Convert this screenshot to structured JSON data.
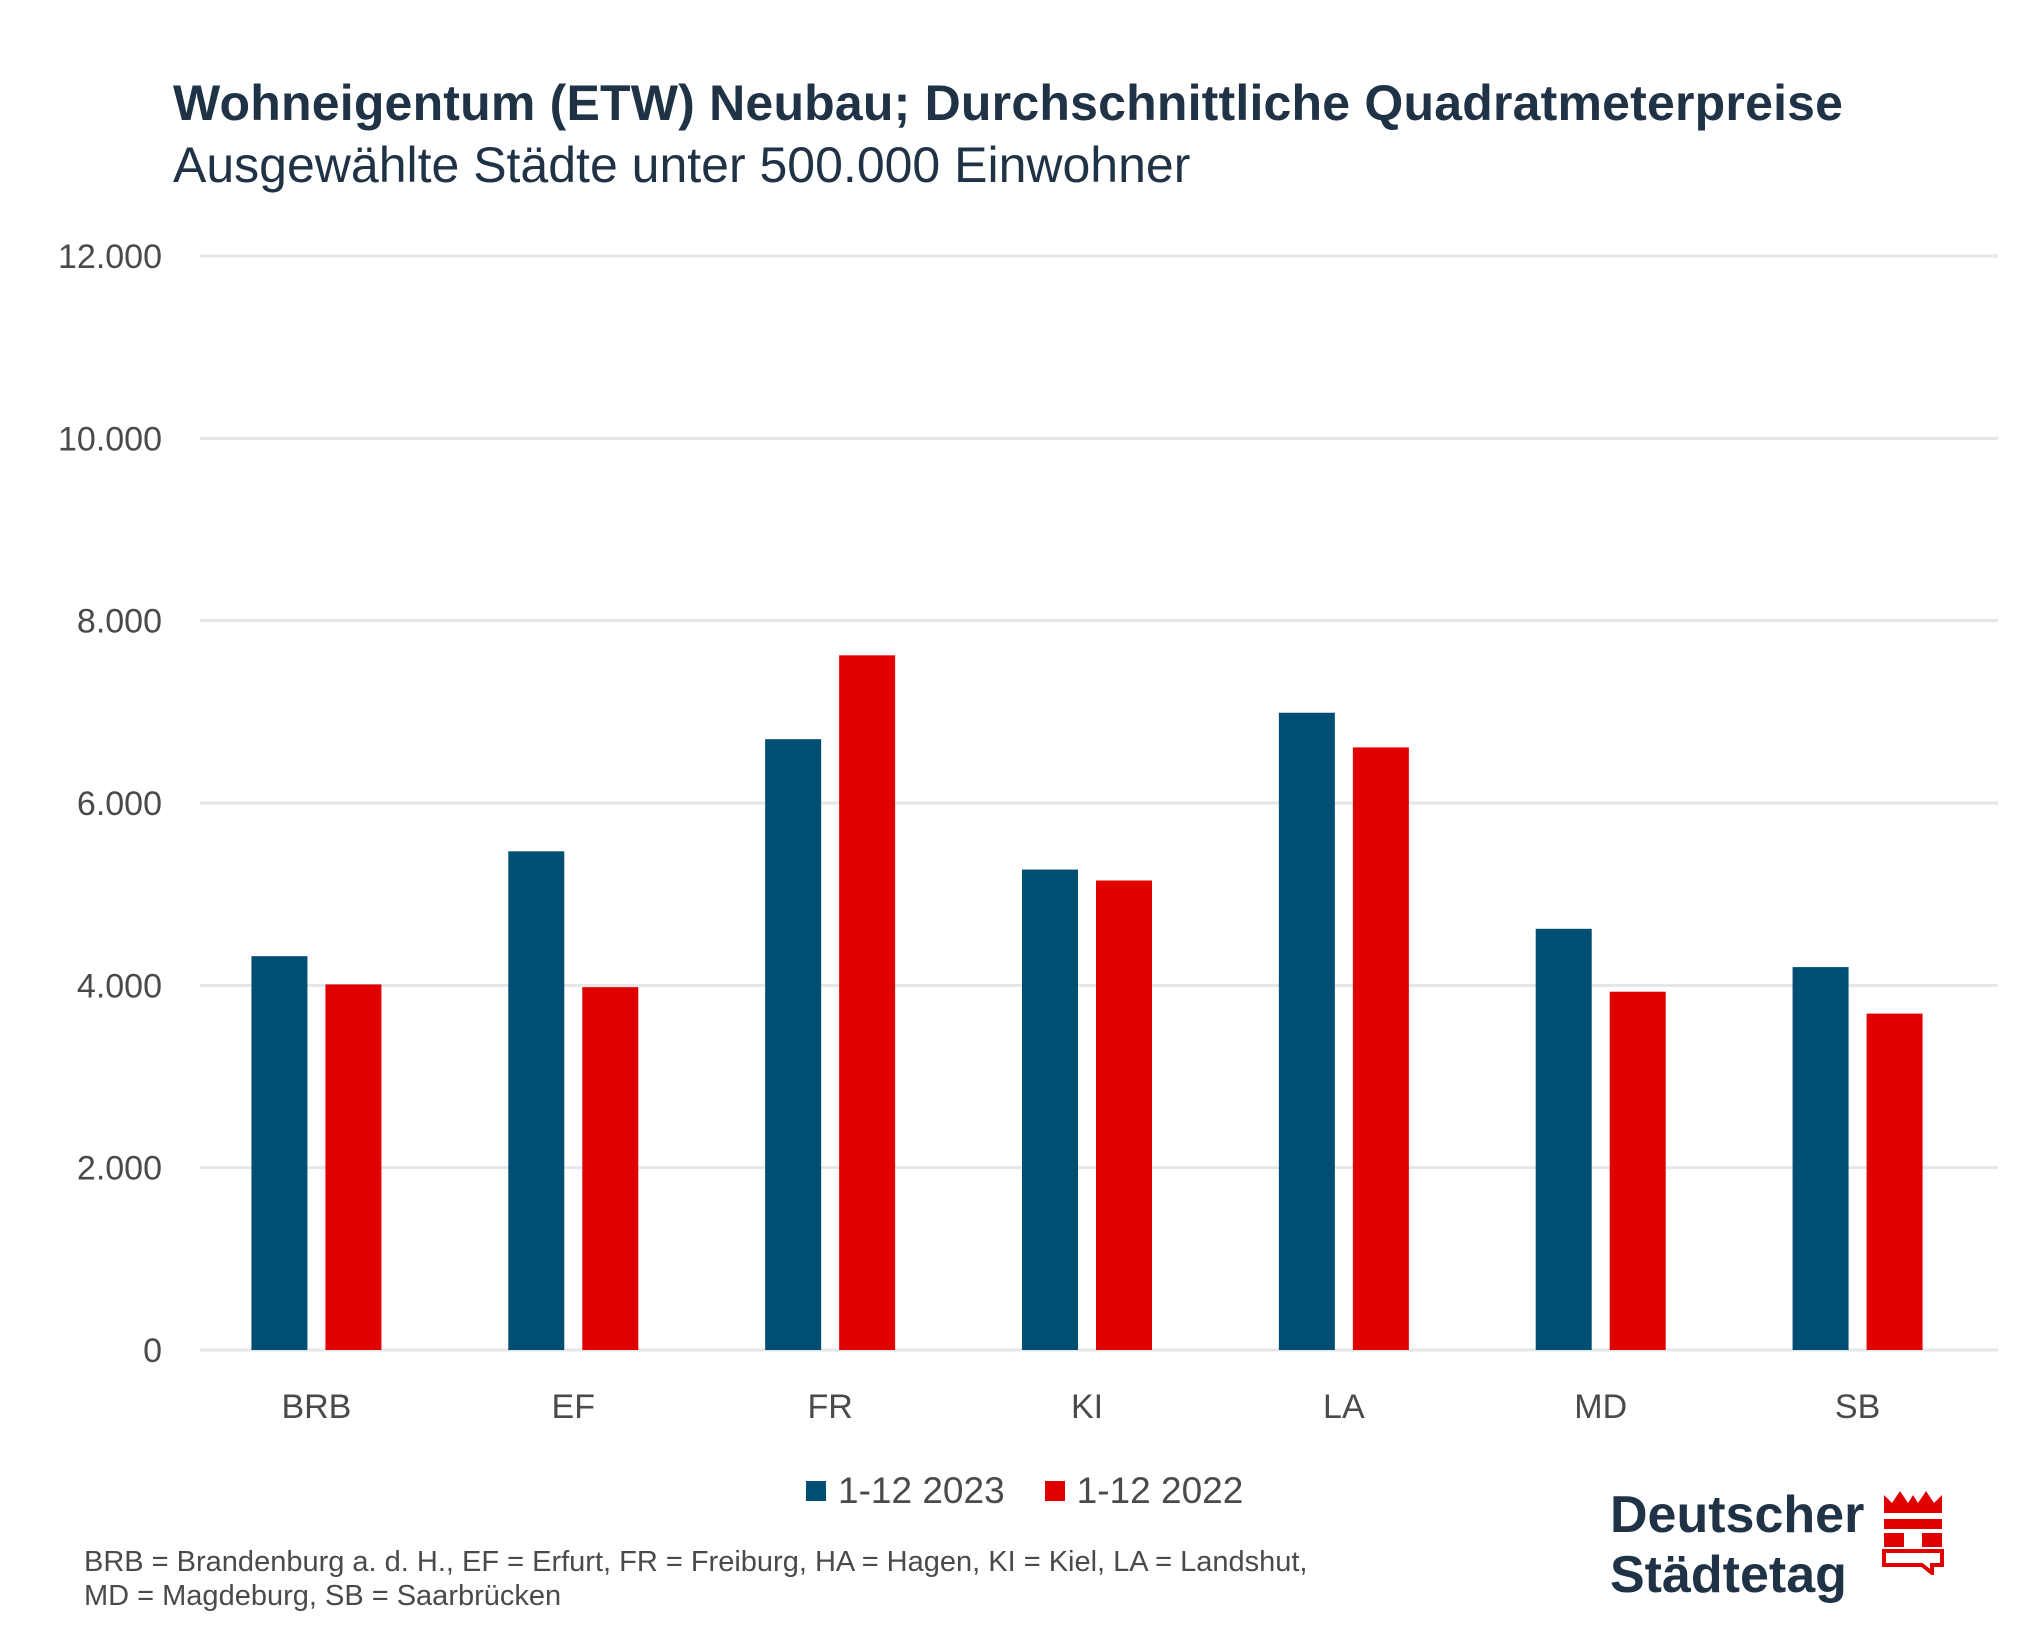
{
  "title": "Wohneigentum (ETW) Neubau; Durchschnittliche Quadratmeterpreise",
  "subtitle": "Ausgewählte Städte unter 500.000 Einwohner",
  "colors": {
    "series_2023": "#004f73",
    "series_2022": "#e00000",
    "grid": "#e3e6ea",
    "text": "#4a4a4a",
    "title": "#1f3246"
  },
  "chart_data": {
    "type": "bar",
    "categories": [
      "BRB",
      "EF",
      "FR",
      "KI",
      "LA",
      "MD",
      "SB"
    ],
    "series": [
      {
        "name": "1-12 2023",
        "values": [
          4320,
          5470,
          6700,
          5270,
          6990,
          4620,
          4200
        ]
      },
      {
        "name": "1-12 2022",
        "values": [
          4010,
          3980,
          7620,
          5150,
          6610,
          3930,
          3690
        ]
      }
    ],
    "yticks": [
      "0",
      "2.000",
      "4.000",
      "6.000",
      "8.000",
      "10.000",
      "12.000"
    ],
    "ylim": [
      0,
      12000
    ],
    "grid": true,
    "legend_position": "bottom-center"
  },
  "footnote": "BRB = Brandenburg a. d. H., EF = Erfurt, FR = Freiburg, HA = Hagen, KI = Kiel, LA = Landshut,\nMD = Magdeburg, SB = Saarbrücken",
  "logo": {
    "text": "Deutscher\nStädtetag",
    "icon": "city-gate-icon"
  }
}
